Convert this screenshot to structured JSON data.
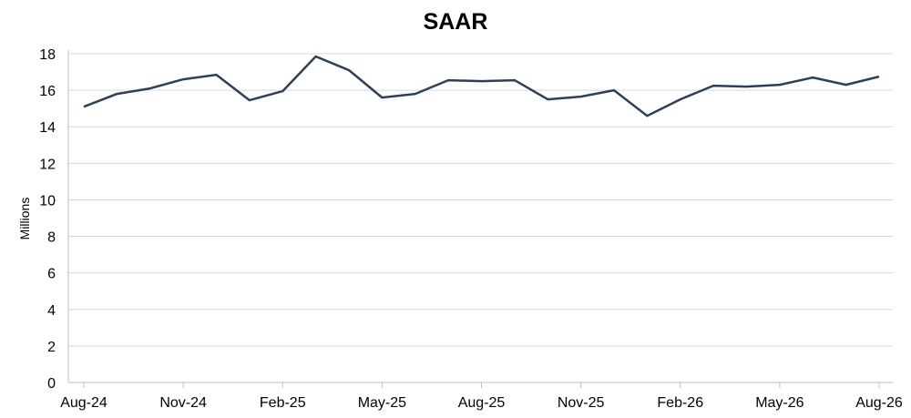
{
  "chart_data": {
    "type": "line",
    "title": "SAAR",
    "xlabel": "",
    "ylabel": "Millions",
    "ylim": [
      0,
      18
    ],
    "yticks": [
      0,
      2,
      4,
      6,
      8,
      10,
      12,
      14,
      16,
      18
    ],
    "grid": "horizontal",
    "legend": "none",
    "x_tick_labels": [
      "Aug-24",
      "Nov-24",
      "Feb-25",
      "May-25",
      "Aug-25",
      "Nov-25",
      "Feb-26",
      "May-26",
      "Aug-26"
    ],
    "x": [
      "Aug-24",
      "Sep-24",
      "Oct-24",
      "Nov-24",
      "Dec-24",
      "Jan-25",
      "Feb-25",
      "Mar-25",
      "Apr-25",
      "May-25",
      "Jun-25",
      "Jul-25",
      "Aug-25",
      "Sep-25",
      "Oct-25",
      "Nov-25",
      "Dec-25",
      "Jan-26",
      "Feb-26",
      "Mar-26",
      "Apr-26",
      "May-26",
      "Jun-26",
      "Jul-26",
      "Aug-26"
    ],
    "series": [
      {
        "color": "#2e4057",
        "values": [
          15.1,
          15.8,
          16.1,
          16.6,
          16.85,
          15.45,
          15.95,
          17.85,
          17.1,
          15.6,
          15.8,
          16.55,
          16.5,
          16.55,
          15.5,
          15.65,
          16.0,
          14.6,
          15.5,
          16.25,
          16.2,
          16.3,
          16.7,
          16.3,
          16.75
        ]
      }
    ]
  }
}
